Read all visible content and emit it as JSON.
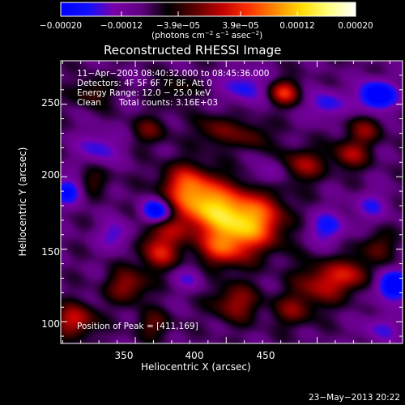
{
  "colorbar": {
    "tick_labels": [
      "−0.00020",
      "−0.00012",
      "−3.9e−05",
      "3.9e−05",
      "0.00012",
      "0.00020"
    ],
    "unit_prefix": "(photons cm",
    "unit_exp1": "−2",
    "unit_mid": " s",
    "unit_exp2": "−1",
    "unit_mid2": " asec",
    "unit_exp3": "−2",
    "unit_suffix": ")",
    "range": [
      -0.0002,
      0.0002
    ],
    "stops": [
      "#0000ff",
      "#1010ff",
      "#7a00a8",
      "#600080",
      "#000000",
      "#5a0000",
      "#c00000",
      "#ff3000",
      "#ff8800",
      "#ffdd00",
      "#ffff80",
      "#ffffff"
    ]
  },
  "chart_data": {
    "type": "heatmap",
    "title": "Reconstructed RHESSI Image",
    "xlabel": "Heliocentric X (arcsec)",
    "ylabel": "Heliocentric Y (arcsec)",
    "xlim": [
      309,
      497
    ],
    "ylim": [
      85,
      280
    ],
    "x_ticks": [
      350,
      400,
      450
    ],
    "y_ticks": [
      100,
      150,
      200,
      250
    ],
    "annotations": {
      "time_range": "11−Apr−2003 08:40:32.000 to 08:45:36.000",
      "detectors": "Detectors: 4F 5F 6F 7F 8F, Att 0",
      "energy": "Energy Range: 12.0 − 25.0 keV",
      "method": "Clean",
      "total_counts": "Total counts: 3.16E+03",
      "peak": "Position of Peak = [411,169]"
    },
    "peak_position": [
      411,
      169
    ],
    "sources": [
      {
        "x": 411,
        "y": 169,
        "amp": 0.0002,
        "sigma": 14
      },
      {
        "x": 388,
        "y": 180,
        "amp": 0.00015,
        "sigma": 12
      },
      {
        "x": 378,
        "y": 195,
        "amp": 0.00011,
        "sigma": 10
      },
      {
        "x": 398,
        "y": 150,
        "amp": 0.0001,
        "sigma": 9
      },
      {
        "x": 365,
        "y": 160,
        "amp": 8e-05,
        "sigma": 10
      },
      {
        "x": 432,
        "y": 258,
        "amp": 0.00012,
        "sigma": 6
      },
      {
        "x": 442,
        "y": 208,
        "amp": 9e-05,
        "sigma": 8
      },
      {
        "x": 468,
        "y": 215,
        "amp": 9e-05,
        "sigma": 7
      },
      {
        "x": 476,
        "y": 232,
        "amp": 7e-05,
        "sigma": 7
      },
      {
        "x": 453,
        "y": 127,
        "amp": 0.0001,
        "sigma": 10
      },
      {
        "x": 470,
        "y": 133,
        "amp": 8e-05,
        "sigma": 8
      },
      {
        "x": 483,
        "y": 152,
        "amp": 6e-05,
        "sigma": 7
      },
      {
        "x": 317,
        "y": 101,
        "amp": 0.00011,
        "sigma": 8
      },
      {
        "x": 346,
        "y": 125,
        "amp": 9e-05,
        "sigma": 8
      },
      {
        "x": 363,
        "y": 145,
        "amp": 8e-05,
        "sigma": 7
      },
      {
        "x": 405,
        "y": 113,
        "amp": 9e-05,
        "sigma": 9
      },
      {
        "x": 437,
        "y": 108,
        "amp": 7e-05,
        "sigma": 8
      },
      {
        "x": 360,
        "y": 98,
        "amp": 6e-05,
        "sigma": 7
      },
      {
        "x": 326,
        "y": 258,
        "amp": 6e-05,
        "sigma": 7
      },
      {
        "x": 358,
        "y": 232,
        "amp": 6e-05,
        "sigma": 7
      },
      {
        "x": 372,
        "y": 260,
        "amp": 5e-05,
        "sigma": 7
      },
      {
        "x": 395,
        "y": 232,
        "amp": 7e-05,
        "sigma": 8
      },
      {
        "x": 327,
        "y": 197,
        "amp": 5e-05,
        "sigma": 7
      },
      {
        "x": 415,
        "y": 228,
        "amp": 6e-05,
        "sigma": 7
      },
      {
        "x": 362,
        "y": 176,
        "amp": -0.00015,
        "sigma": 6
      },
      {
        "x": 483,
        "y": 256,
        "amp": -0.00016,
        "sigma": 7
      },
      {
        "x": 492,
        "y": 125,
        "amp": -0.00015,
        "sigma": 7
      },
      {
        "x": 313,
        "y": 190,
        "amp": -0.00011,
        "sigma": 6
      },
      {
        "x": 424,
        "y": 202,
        "amp": -6e-05,
        "sigma": 6
      },
      {
        "x": 330,
        "y": 220,
        "amp": -7e-05,
        "sigma": 8
      },
      {
        "x": 410,
        "y": 262,
        "amp": -8e-05,
        "sigma": 8
      },
      {
        "x": 455,
        "y": 165,
        "amp": -8e-05,
        "sigma": 8
      },
      {
        "x": 340,
        "y": 160,
        "amp": -7e-05,
        "sigma": 7
      },
      {
        "x": 455,
        "y": 250,
        "amp": -8e-05,
        "sigma": 7
      },
      {
        "x": 380,
        "y": 130,
        "amp": -5e-05,
        "sigma": 6
      },
      {
        "x": 480,
        "y": 180,
        "amp": -6e-05,
        "sigma": 7
      },
      {
        "x": 485,
        "y": 95,
        "amp": -6e-05,
        "sigma": 7
      }
    ]
  },
  "footer": {
    "timestamp": "23−May−2013 20:22"
  }
}
